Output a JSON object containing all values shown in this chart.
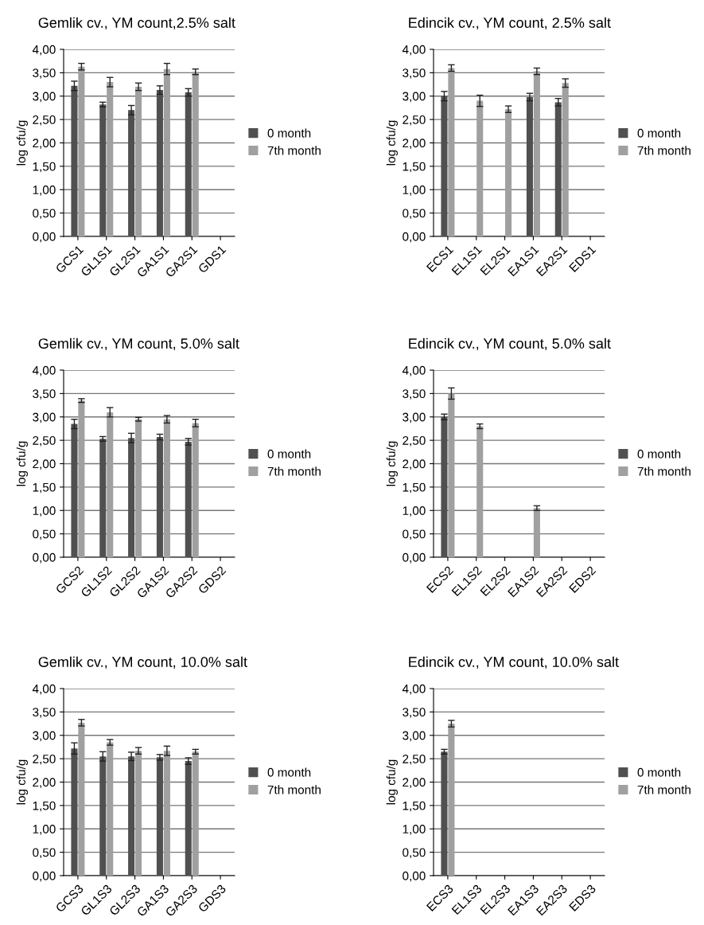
{
  "chart_data": [
    {
      "type": "bar",
      "title": "Gemlik cv., YM count,2.5% salt",
      "ylabel": "log cfu/g",
      "categories": [
        "GCS1",
        "GL1S1",
        "GL2S1",
        "GA1S1",
        "GA2S1",
        "GDS1"
      ],
      "series": [
        {
          "name": "0 month",
          "color": "#505050",
          "values": [
            3.22,
            2.82,
            2.7,
            3.13,
            3.08,
            null
          ],
          "errors": [
            0.1,
            0.05,
            0.1,
            0.09,
            0.08,
            null
          ]
        },
        {
          "name": "7th month",
          "color": "#a0a0a0",
          "values": [
            3.63,
            3.3,
            3.2,
            3.58,
            3.52,
            null
          ],
          "errors": [
            0.07,
            0.1,
            0.08,
            0.12,
            0.06,
            null
          ]
        }
      ],
      "ylim": [
        0,
        4
      ],
      "yticks": [
        {
          "value": 0,
          "label": "0,00"
        },
        {
          "value": 0.5,
          "label": "0,50"
        },
        {
          "value": 1,
          "label": "1,00"
        },
        {
          "value": 1.5,
          "label": "1,50"
        },
        {
          "value": 2,
          "label": "2,00"
        },
        {
          "value": 2.5,
          "label": "2,50"
        },
        {
          "value": 3,
          "label": "3,00"
        },
        {
          "value": 3.5,
          "label": "3,50"
        },
        {
          "value": 4,
          "label": "4,00"
        }
      ],
      "grid": "y",
      "legend": "right"
    },
    {
      "type": "bar",
      "title": "Edincik cv., YM count, 2.5% salt",
      "ylabel": "log cfu/g",
      "categories": [
        "ECS1",
        "EL1S1",
        "EL2S1",
        "EA1S1",
        "EA2S1",
        "EDS1"
      ],
      "series": [
        {
          "name": "0 month",
          "color": "#505050",
          "values": [
            3.0,
            null,
            null,
            2.98,
            2.87,
            null
          ],
          "errors": [
            0.1,
            null,
            null,
            0.08,
            0.08,
            null
          ]
        },
        {
          "name": "7th month",
          "color": "#a0a0a0",
          "values": [
            3.6,
            2.9,
            2.72,
            3.53,
            3.28,
            null
          ],
          "errors": [
            0.07,
            0.12,
            0.07,
            0.07,
            0.09,
            null
          ]
        }
      ],
      "ylim": [
        0,
        4
      ],
      "yticks": [
        {
          "value": 0,
          "label": "0,00"
        },
        {
          "value": 0.5,
          "label": "0,50"
        },
        {
          "value": 1,
          "label": "1,00"
        },
        {
          "value": 1.5,
          "label": "1,50"
        },
        {
          "value": 2,
          "label": "2,00"
        },
        {
          "value": 2.5,
          "label": "2,50"
        },
        {
          "value": 3,
          "label": "3,00"
        },
        {
          "value": 3.5,
          "label": "3,50"
        },
        {
          "value": 4,
          "label": "4,00"
        }
      ],
      "grid": "y",
      "legend": "right"
    },
    {
      "type": "bar",
      "title": "Gemlik cv., YM count, 5.0% salt",
      "ylabel": "log cfu/g",
      "categories": [
        "GCS2",
        "GL1S2",
        "GL2S2",
        "GA1S2",
        "GA2S2",
        "GDS2"
      ],
      "series": [
        {
          "name": "0 month",
          "color": "#505050",
          "values": [
            2.85,
            2.53,
            2.55,
            2.57,
            2.47,
            null
          ],
          "errors": [
            0.1,
            0.05,
            0.1,
            0.06,
            0.07,
            null
          ]
        },
        {
          "name": "7th month",
          "color": "#a0a0a0",
          "values": [
            3.35,
            3.1,
            2.95,
            2.95,
            2.87,
            null
          ],
          "errors": [
            0.04,
            0.1,
            0.04,
            0.08,
            0.08,
            null
          ]
        }
      ],
      "ylim": [
        0,
        4
      ],
      "yticks": [
        {
          "value": 0,
          "label": "0,00"
        },
        {
          "value": 0.5,
          "label": "0,50"
        },
        {
          "value": 1,
          "label": "1,00"
        },
        {
          "value": 1.5,
          "label": "1,50"
        },
        {
          "value": 2,
          "label": "2,00"
        },
        {
          "value": 2.5,
          "label": "2,50"
        },
        {
          "value": 3,
          "label": "3,00"
        },
        {
          "value": 3.5,
          "label": "3,50"
        },
        {
          "value": 4,
          "label": "4,00"
        }
      ],
      "grid": "y",
      "legend": "right"
    },
    {
      "type": "bar",
      "title": "Edincik cv., YM count, 5.0% salt",
      "ylabel": "log cfu/g",
      "categories": [
        "ECS2",
        "EL1S2",
        "EL2S2",
        "EA1S2",
        "EA2S2",
        "EDS2"
      ],
      "series": [
        {
          "name": "0 month",
          "color": "#505050",
          "values": [
            3.0,
            null,
            null,
            null,
            null,
            null
          ],
          "errors": [
            0.06,
            null,
            null,
            null,
            null,
            null
          ]
        },
        {
          "name": "7th month",
          "color": "#a0a0a0",
          "values": [
            3.5,
            2.8,
            null,
            1.05,
            null,
            null
          ],
          "errors": [
            0.12,
            0.05,
            null,
            0.05,
            null,
            null
          ]
        }
      ],
      "ylim": [
        0,
        4
      ],
      "yticks": [
        {
          "value": 0,
          "label": "0,00"
        },
        {
          "value": 0.5,
          "label": "0,50"
        },
        {
          "value": 1,
          "label": "1,00"
        },
        {
          "value": 1.5,
          "label": "1,50"
        },
        {
          "value": 2,
          "label": "2,00"
        },
        {
          "value": 2.5,
          "label": "2,50"
        },
        {
          "value": 3,
          "label": "3,00"
        },
        {
          "value": 3.5,
          "label": "3,50"
        },
        {
          "value": 4,
          "label": "4,00"
        }
      ],
      "grid": "y",
      "legend": "right"
    },
    {
      "type": "bar",
      "title": "Gemlik cv., YM count, 10.0% salt",
      "ylabel": "log cfu/g",
      "categories": [
        "GCS3",
        "GL1S3",
        "GL2S3",
        "GA1S3",
        "GA2S3",
        "GDS3"
      ],
      "series": [
        {
          "name": "0 month",
          "color": "#505050",
          "values": [
            2.72,
            2.55,
            2.55,
            2.53,
            2.45,
            null
          ],
          "errors": [
            0.12,
            0.1,
            0.09,
            0.06,
            0.07,
            null
          ]
        },
        {
          "name": "7th month",
          "color": "#a0a0a0",
          "values": [
            3.27,
            2.85,
            2.67,
            2.67,
            2.65,
            null
          ],
          "errors": [
            0.07,
            0.06,
            0.07,
            0.1,
            0.05,
            null
          ]
        }
      ],
      "ylim": [
        0,
        4
      ],
      "yticks": [
        {
          "value": 0,
          "label": "0,00"
        },
        {
          "value": 0.5,
          "label": "0,50"
        },
        {
          "value": 1,
          "label": "1,00"
        },
        {
          "value": 1.5,
          "label": "1,50"
        },
        {
          "value": 2,
          "label": "2,00"
        },
        {
          "value": 2.5,
          "label": "2,50"
        },
        {
          "value": 3,
          "label": "3,00"
        },
        {
          "value": 3.5,
          "label": "3,50"
        },
        {
          "value": 4,
          "label": "4,00"
        }
      ],
      "grid": "y",
      "legend": "right"
    },
    {
      "type": "bar",
      "title": "Edincik cv., YM count, 10.0% salt",
      "ylabel": "log cfu/g",
      "categories": [
        "ECS3",
        "EL1S3",
        "EL2S3",
        "EA1S3",
        "EA2S3",
        "EDS3"
      ],
      "series": [
        {
          "name": "0 month",
          "color": "#505050",
          "values": [
            2.65,
            null,
            null,
            null,
            null,
            null
          ],
          "errors": [
            0.05,
            null,
            null,
            null,
            null,
            null
          ]
        },
        {
          "name": "7th month",
          "color": "#a0a0a0",
          "values": [
            3.25,
            null,
            null,
            null,
            null,
            null
          ],
          "errors": [
            0.07,
            null,
            null,
            null,
            null,
            null
          ]
        }
      ],
      "ylim": [
        0,
        4
      ],
      "yticks": [
        {
          "value": 0,
          "label": "0,00"
        },
        {
          "value": 0.5,
          "label": "0,50"
        },
        {
          "value": 1,
          "label": "1,00"
        },
        {
          "value": 1.5,
          "label": "1,50"
        },
        {
          "value": 2,
          "label": "2,00"
        },
        {
          "value": 2.5,
          "label": "2,50"
        },
        {
          "value": 3,
          "label": "3,00"
        },
        {
          "value": 3.5,
          "label": "3,50"
        },
        {
          "value": 4,
          "label": "4,00"
        }
      ],
      "grid": "y",
      "legend": "right"
    }
  ]
}
